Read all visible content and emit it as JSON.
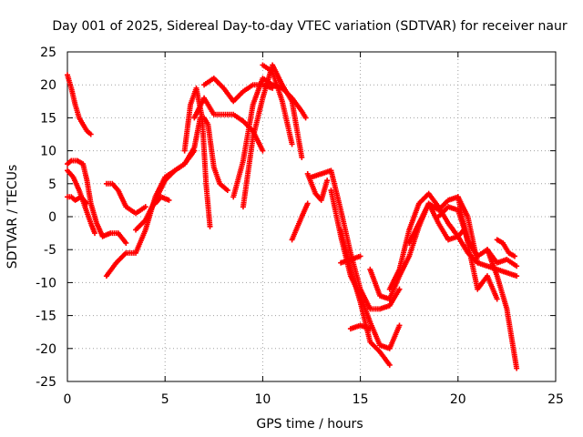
{
  "chart_data": {
    "type": "scatter",
    "title": "Day 001 of 2025, Sidereal Day-to-day VTEC variation (SDTVAR) for receiver naur",
    "xlabel": "GPS time / hours",
    "ylabel": "SDTVAR / TECUs",
    "xlim": [
      0,
      25
    ],
    "ylim": [
      -25,
      25
    ],
    "xticks": [
      0,
      5,
      10,
      15,
      20,
      25
    ],
    "yticks": [
      -25,
      -20,
      -15,
      -10,
      -5,
      0,
      5,
      10,
      15,
      20,
      25
    ],
    "grid": true,
    "marker": "plus",
    "series_color": "#ff0000",
    "series": [
      {
        "x": [
          0.0,
          0.2,
          0.4,
          0.6,
          0.8,
          1.0,
          1.2
        ],
        "y": [
          21.5,
          19.5,
          17.0,
          15.0,
          14.0,
          13.0,
          12.5
        ]
      },
      {
        "x": [
          0.0,
          0.2,
          0.5,
          0.8,
          1.0,
          1.2,
          1.5,
          1.8,
          2.2,
          2.6,
          3.0
        ],
        "y": [
          8.0,
          8.5,
          8.5,
          8.0,
          5.5,
          2.0,
          -1.0,
          -3.0,
          -2.5,
          -2.5,
          -4.0
        ]
      },
      {
        "x": [
          0.0,
          0.3,
          0.6,
          0.9,
          1.2,
          1.4
        ],
        "y": [
          7.0,
          6.0,
          4.0,
          1.5,
          -1.0,
          -2.5
        ]
      },
      {
        "x": [
          0.0,
          0.2,
          0.4,
          0.7,
          1.0
        ],
        "y": [
          3.0,
          3.0,
          2.5,
          3.0,
          2.0
        ]
      },
      {
        "x": [
          2.0,
          2.3,
          2.6,
          3.0,
          3.5,
          4.0
        ],
        "y": [
          5.0,
          5.0,
          4.0,
          1.5,
          0.5,
          1.5
        ]
      },
      {
        "x": [
          2.0,
          2.5,
          3.0,
          3.5,
          4.0,
          4.5,
          5.0,
          5.5,
          6.0,
          6.5
        ],
        "y": [
          -9.0,
          -7.0,
          -5.5,
          -5.5,
          -2.0,
          3.0,
          6.0,
          7.0,
          8.0,
          10.0
        ]
      },
      {
        "x": [
          3.5,
          4.0,
          4.5,
          5.0,
          5.5,
          6.0,
          6.5,
          6.8
        ],
        "y": [
          -2.0,
          -0.5,
          2.5,
          5.5,
          7.0,
          8.0,
          10.5,
          15.0
        ]
      },
      {
        "x": [
          4.5,
          4.8,
          5.2
        ],
        "y": [
          2.0,
          3.0,
          2.5
        ]
      },
      {
        "x": [
          6.0,
          6.3,
          6.6,
          6.9,
          7.1,
          7.3
        ],
        "y": [
          10.0,
          17.0,
          19.5,
          15.0,
          5.0,
          -1.5
        ]
      },
      {
        "x": [
          6.5,
          7.0,
          7.5,
          8.0,
          8.5,
          9.0,
          9.5,
          10.0
        ],
        "y": [
          15.0,
          18.0,
          15.5,
          15.5,
          15.5,
          14.5,
          13.0,
          10.0
        ]
      },
      {
        "x": [
          7.0,
          7.5,
          8.0,
          8.5,
          9.0,
          9.5,
          10.0,
          10.5
        ],
        "y": [
          20.0,
          21.0,
          19.5,
          17.5,
          19.0,
          20.0,
          20.0,
          19.5
        ]
      },
      {
        "x": [
          7.0,
          7.2,
          7.5,
          7.8,
          8.2
        ],
        "y": [
          15.0,
          14.0,
          7.5,
          5.0,
          4.0
        ]
      },
      {
        "x": [
          8.5,
          9.0,
          9.5,
          10.0,
          10.5,
          11.0,
          11.5,
          12.0,
          12.2
        ],
        "y": [
          3.0,
          8.5,
          17.0,
          21.0,
          20.0,
          19.5,
          18.0,
          16.0,
          15.0
        ]
      },
      {
        "x": [
          9.0,
          9.5,
          10.0,
          10.5,
          11.0,
          11.5,
          12.0
        ],
        "y": [
          1.5,
          12.0,
          18.0,
          23.0,
          20.0,
          17.5,
          9.0
        ]
      },
      {
        "x": [
          10.0,
          10.5,
          11.0,
          11.5
        ],
        "y": [
          23.0,
          22.0,
          17.5,
          11.0
        ]
      },
      {
        "x": [
          11.5,
          12.0,
          12.3
        ],
        "y": [
          -3.5,
          0.0,
          2.0
        ]
      },
      {
        "x": [
          12.3,
          12.7,
          13.0,
          13.3
        ],
        "y": [
          6.5,
          3.5,
          2.5,
          5.5
        ]
      },
      {
        "x": [
          12.5,
          13.0,
          13.5,
          14.0,
          14.5,
          15.0,
          15.5,
          16.0,
          16.5,
          17.0
        ],
        "y": [
          6.0,
          6.5,
          7.0,
          1.0,
          -5.5,
          -11.0,
          -14.0,
          -14.0,
          -13.5,
          -11.0
        ]
      },
      {
        "x": [
          13.5,
          14.0,
          14.5,
          15.0,
          15.5,
          16.0,
          16.5,
          17.0
        ],
        "y": [
          4.0,
          -3.0,
          -9.0,
          -12.0,
          -16.0,
          -19.5,
          -20.0,
          -16.5
        ]
      },
      {
        "x": [
          14.0,
          14.5,
          15.0,
          15.5,
          16.0,
          16.5
        ],
        "y": [
          -2.0,
          -8.0,
          -13.0,
          -19.0,
          -20.5,
          -22.5
        ]
      },
      {
        "x": [
          14.0,
          14.5,
          15.0
        ],
        "y": [
          -7.0,
          -6.5,
          -6.0
        ]
      },
      {
        "x": [
          14.5,
          15.0,
          15.5
        ],
        "y": [
          -17.0,
          -16.5,
          -17.0
        ]
      },
      {
        "x": [
          15.5,
          16.0,
          16.5,
          17.0
        ],
        "y": [
          -8.0,
          -12.0,
          -12.5,
          -9.0
        ]
      },
      {
        "x": [
          16.5,
          17.0,
          17.5,
          18.0,
          18.5,
          19.0,
          19.5,
          20.0,
          20.3
        ],
        "y": [
          -11.0,
          -8.0,
          -2.0,
          2.0,
          3.5,
          1.5,
          -1.0,
          -3.0,
          -2.0
        ]
      },
      {
        "x": [
          17.0,
          17.5,
          18.0,
          18.5,
          19.0,
          19.5,
          20.0,
          20.5,
          21.0
        ],
        "y": [
          -9.0,
          -6.0,
          -1.5,
          2.0,
          1.0,
          2.5,
          3.0,
          0.0,
          -7.0
        ]
      },
      {
        "x": [
          17.5,
          18.0,
          18.5,
          19.0,
          19.5,
          20.0
        ],
        "y": [
          -4.0,
          -1.0,
          2.0,
          -1.0,
          -3.5,
          -3.0
        ]
      },
      {
        "x": [
          19.0,
          19.5,
          20.0,
          20.5,
          21.0,
          21.5,
          22.0,
          22.5,
          23.0
        ],
        "y": [
          0.0,
          1.5,
          1.0,
          -3.5,
          -6.0,
          -5.0,
          -7.0,
          -6.5,
          -7.5
        ]
      },
      {
        "x": [
          19.5,
          20.0,
          20.5,
          21.0,
          21.5,
          22.0,
          22.5,
          23.0
        ],
        "y": [
          -1.0,
          -3.0,
          -5.5,
          -7.0,
          -7.5,
          -8.0,
          -8.5,
          -9.0
        ]
      },
      {
        "x": [
          20.0,
          20.5,
          21.0,
          21.5,
          22.0
        ],
        "y": [
          3.0,
          -4.0,
          -11.0,
          -9.0,
          -12.5
        ]
      },
      {
        "x": [
          21.5,
          22.0,
          22.5,
          23.0
        ],
        "y": [
          -5.0,
          -9.0,
          -14.0,
          -23.0
        ]
      },
      {
        "x": [
          22.0,
          22.3,
          22.6,
          22.9
        ],
        "y": [
          -3.5,
          -4.0,
          -5.5,
          -6.0
        ]
      }
    ]
  }
}
